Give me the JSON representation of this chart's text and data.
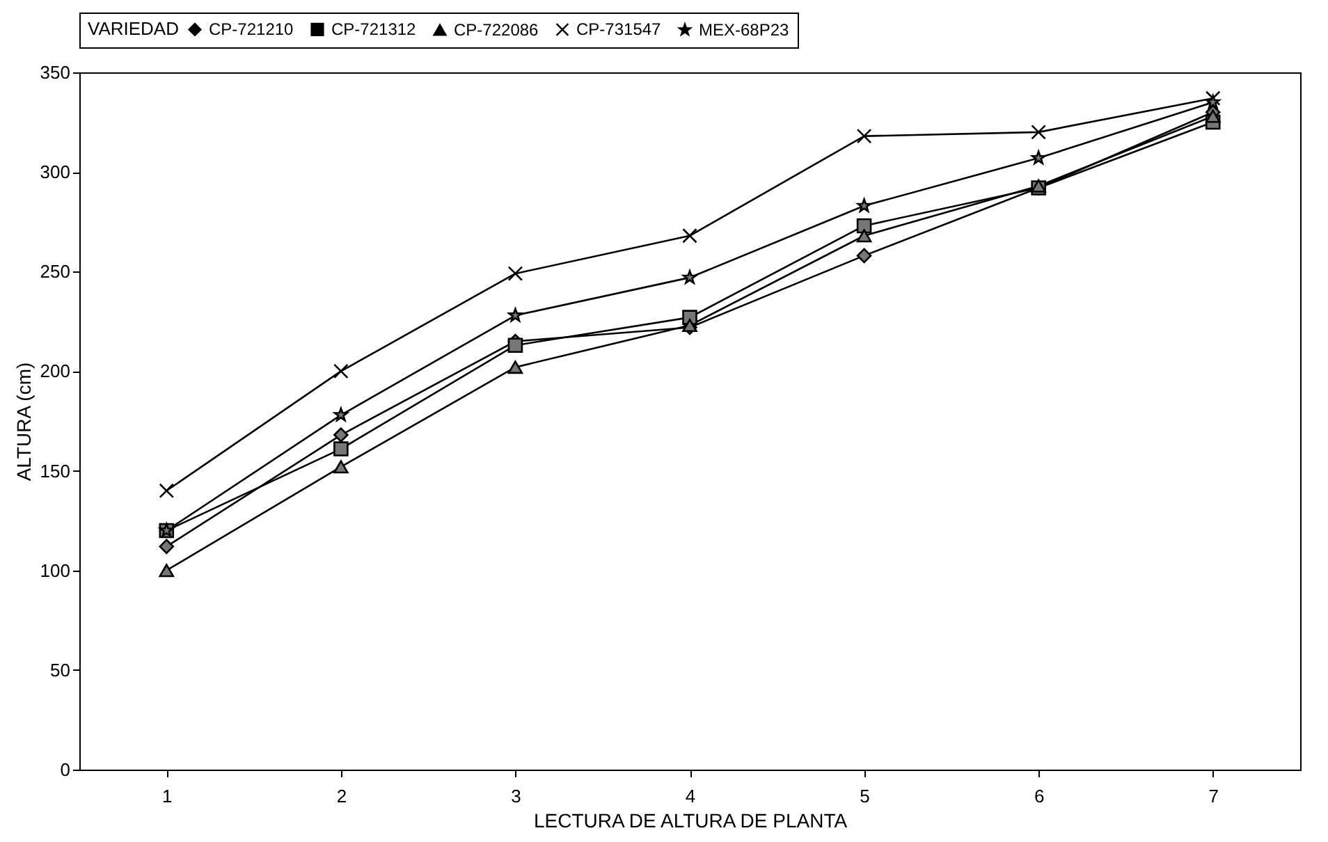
{
  "chart_data": {
    "type": "line",
    "xlabel": "LECTURA DE ALTURA DE PLANTA",
    "ylabel": "ALTURA  (cm)",
    "legend_title": "VARIEDAD",
    "legend": "top",
    "grid": false,
    "line_style": "solid",
    "categories": [
      "1",
      "2",
      "3",
      "4",
      "5",
      "6",
      "7"
    ],
    "ylim": [
      0,
      350
    ],
    "yticks": [
      0,
      50,
      100,
      150,
      200,
      250,
      300,
      350
    ],
    "series": [
      {
        "name": "CP-721210",
        "color": "#000000",
        "marker": "diamond",
        "values": [
          112,
          168,
          215,
          222,
          258,
          292,
          330
        ]
      },
      {
        "name": "CP-721312",
        "color": "#000000",
        "marker": "square",
        "values": [
          120,
          161,
          213,
          227,
          273,
          292,
          325
        ]
      },
      {
        "name": "CP-722086",
        "color": "#000000",
        "marker": "triangle",
        "values": [
          100,
          152,
          202,
          223,
          268,
          293,
          328
        ]
      },
      {
        "name": "CP-731547",
        "color": "#000000",
        "marker": "cross",
        "values": [
          140,
          200,
          249,
          268,
          318,
          320,
          337
        ]
      },
      {
        "name": "MEX-68P23",
        "color": "#000000",
        "marker": "star",
        "values": [
          120,
          178,
          228,
          247,
          283,
          307,
          335
        ]
      }
    ]
  }
}
